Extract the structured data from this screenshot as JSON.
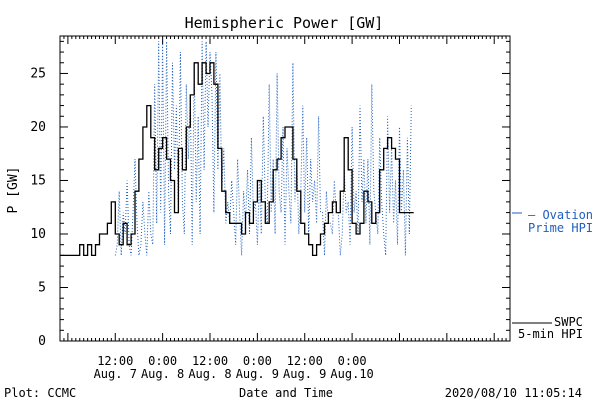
{
  "chart_data": {
    "type": "line",
    "title": "Hemispheric Power [GW]",
    "xlabel": "Date and Time",
    "ylabel": "P [GW]",
    "ylim": [
      0,
      28.5
    ],
    "xlim_hours": [
      -14,
      100
    ],
    "grid": false,
    "yticks": [
      0,
      5,
      10,
      15,
      20,
      25
    ],
    "xticks": [
      {
        "t": 0,
        "line1": "12:00",
        "line2": "Aug. 7"
      },
      {
        "t": 12,
        "line1": "0:00",
        "line2": "Aug. 8"
      },
      {
        "t": 24,
        "line1": "12:00",
        "line2": "Aug. 8"
      },
      {
        "t": 36,
        "line1": "0:00",
        "line2": "Aug. 9"
      },
      {
        "t": 48,
        "line1": "12:00",
        "line2": "Aug. 9"
      },
      {
        "t": 60,
        "line1": "0:00",
        "line2": "Aug.10"
      }
    ],
    "series": [
      {
        "name": "Ovation Prime HPI",
        "legend_line1": "— Ovation",
        "legend_line2": "Prime HPI",
        "color": "#1f5fbf",
        "style": "dotted",
        "x": [
          0,
          0.5,
          1,
          1.5,
          2,
          2.5,
          3,
          3.5,
          4,
          4.5,
          5,
          5.5,
          6,
          6.5,
          7,
          7.5,
          8,
          8.5,
          9,
          9.5,
          10,
          10.5,
          11,
          11.5,
          12,
          12.5,
          13,
          13.5,
          14,
          14.5,
          15,
          15.5,
          16,
          16.5,
          17,
          17.5,
          18,
          18.5,
          19,
          19.5,
          20,
          20.5,
          21,
          21.5,
          22,
          22.5,
          23,
          23.5,
          24,
          24.5,
          25,
          25.5,
          26,
          26.5,
          27,
          27.5,
          28,
          28.5,
          29,
          29.5,
          30,
          30.5,
          31,
          31.5,
          32,
          32.5,
          33,
          33.5,
          34,
          34.5,
          35,
          35.5,
          36,
          36.5,
          37,
          37.5,
          38,
          38.5,
          39,
          39.5,
          40,
          40.5,
          41,
          41.5,
          42,
          42.5,
          43,
          43.5,
          44,
          44.5,
          45,
          45.5,
          46,
          46.5,
          47,
          47.5,
          48,
          48.5,
          49,
          49.5,
          50,
          50.5,
          51,
          51.5,
          52,
          52.5,
          53,
          53.5,
          54,
          54.5,
          55,
          55.5,
          56,
          56.5,
          57,
          57.5,
          58,
          58.5,
          59,
          59.5,
          60,
          60.5,
          61,
          61.5,
          62,
          62.5,
          63,
          63.5,
          64,
          64.5,
          65,
          65.5,
          66,
          66.5,
          67,
          67.5,
          68,
          68.5,
          69,
          69.5,
          70,
          70.5,
          71,
          71.5,
          72,
          72.5,
          73,
          73.5,
          74,
          74.5,
          75
        ],
        "y": [
          8,
          9,
          14,
          8,
          12,
          10,
          15,
          9,
          8,
          12,
          17,
          11,
          8,
          9,
          13,
          10,
          8,
          14,
          10,
          9,
          24,
          11,
          28,
          12,
          28,
          9,
          28,
          14,
          10,
          26,
          16,
          22,
          12,
          27,
          13,
          10,
          24,
          17,
          23,
          9,
          26,
          13,
          21,
          10,
          28,
          16,
          28,
          20,
          27,
          23,
          12,
          27,
          16,
          25,
          14,
          18,
          11,
          13,
          11,
          15,
          12,
          9,
          17,
          12,
          8,
          14,
          11,
          16,
          10,
          19,
          12,
          13,
          9,
          15,
          10,
          21,
          13,
          11,
          24,
          12,
          17,
          10,
          25,
          14,
          12,
          20,
          9,
          18,
          14,
          11,
          26,
          13,
          17,
          10,
          14,
          22,
          12,
          19,
          10,
          17,
          13,
          15,
          11,
          21,
          12,
          12,
          8,
          14,
          11,
          11,
          10,
          15,
          12,
          12,
          8,
          10,
          16,
          12,
          13,
          9,
          20,
          12,
          14,
          10,
          22,
          13,
          17,
          11,
          17,
          9,
          24,
          14,
          12,
          10,
          19,
          13,
          10,
          8,
          21,
          12,
          18,
          11,
          15,
          9,
          20,
          12,
          16,
          8,
          19,
          10,
          22
        ]
      },
      {
        "name": "SWPC 5-min HPI",
        "legend_line1": "SWPC",
        "legend_line2": "5-min HPI",
        "color": "#000000",
        "style": "solid",
        "x": [
          -14,
          -10,
          -9,
          -8,
          -7,
          -6,
          -5,
          -4,
          -3,
          -2,
          -1,
          0,
          1,
          2,
          3,
          4,
          5,
          6,
          7,
          8,
          9,
          10,
          11,
          12,
          13,
          14,
          15,
          16,
          17,
          18,
          19,
          20,
          21,
          22,
          23,
          24,
          25,
          26,
          27,
          28,
          29,
          30,
          31,
          32,
          33,
          34,
          35,
          36,
          37,
          38,
          39,
          40,
          41,
          42,
          43,
          44,
          45,
          46,
          47,
          48,
          49,
          50,
          51,
          52,
          53,
          54,
          55,
          56,
          57,
          58,
          59,
          60,
          61,
          62,
          63,
          64,
          65,
          66,
          67,
          68,
          69,
          70,
          71,
          72,
          73,
          74,
          75
        ],
        "y": [
          8,
          8,
          9,
          8,
          9,
          8,
          9,
          10,
          10,
          11,
          13,
          10,
          9,
          11,
          9,
          10,
          14,
          17,
          20,
          22,
          19,
          16,
          18,
          19,
          17,
          15,
          12,
          18,
          16,
          20,
          23,
          26,
          24,
          26,
          25,
          26,
          24,
          18,
          14,
          12,
          11,
          11,
          11,
          10,
          12,
          11,
          13,
          15,
          13,
          11,
          13,
          16,
          17,
          19,
          20,
          20,
          17,
          14,
          11,
          10,
          9,
          8,
          9,
          10,
          11,
          12,
          13,
          12,
          14,
          19,
          16,
          11,
          10,
          11,
          14,
          13,
          11,
          12,
          16,
          18,
          19,
          18,
          17,
          12,
          12,
          12,
          12
        ]
      }
    ],
    "footer_left": "Plot: CCMC",
    "footer_right": "2020/08/10 11:05:14"
  }
}
